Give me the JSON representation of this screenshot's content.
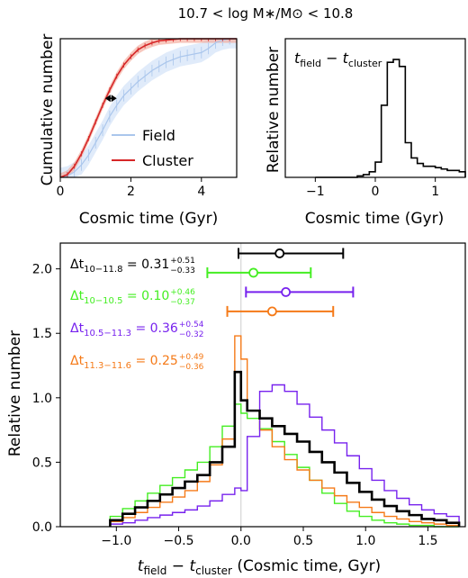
{
  "figure_title": "10.7 < log M∗/M⊙ < 10.8",
  "colors": {
    "field": "#aac6ec",
    "field_band": "#cfe0f8",
    "cluster": "#d62728",
    "cluster_band": "#f2a99a",
    "all": "#000000",
    "low": "#44ee22",
    "mid": "#7722ee",
    "high": "#f57a18",
    "zero_line": "#cccccc"
  },
  "chart_data": [
    {
      "id": "cumulative",
      "type": "line",
      "xlabel": "Cosmic time (Gyr)",
      "ylabel": "Cumulative number",
      "xlim": [
        0,
        5
      ],
      "ylim": [
        0,
        1
      ],
      "xticks": [
        0,
        2,
        4
      ],
      "yticks_shown": false,
      "x": [
        0.2,
        0.4,
        0.6,
        0.8,
        1.0,
        1.2,
        1.4,
        1.6,
        1.8,
        2.0,
        2.2,
        2.4,
        2.6,
        2.8,
        3.0,
        3.2,
        3.4,
        3.6,
        3.8,
        4.0,
        4.2,
        4.4,
        4.6,
        4.8,
        5.0
      ],
      "series": [
        {
          "name": "Field",
          "values": [
            0.01,
            0.04,
            0.09,
            0.16,
            0.25,
            0.34,
            0.44,
            0.52,
            0.59,
            0.64,
            0.69,
            0.73,
            0.77,
            0.8,
            0.83,
            0.85,
            0.87,
            0.88,
            0.89,
            0.9,
            0.93,
            0.97,
            0.99,
            1.0,
            1.0
          ],
          "band": 0.07
        },
        {
          "name": "Cluster",
          "values": [
            0.02,
            0.08,
            0.17,
            0.28,
            0.4,
            0.52,
            0.63,
            0.73,
            0.81,
            0.87,
            0.92,
            0.95,
            0.97,
            0.985,
            0.99,
            0.995,
            1.0,
            1.0,
            1.0,
            1.0,
            1.0,
            1.0,
            1.0,
            1.0,
            1.0
          ],
          "band": 0.03
        }
      ],
      "legend": {
        "position": "lower-right",
        "entries": [
          "Field",
          "Cluster"
        ]
      },
      "arrow_between": {
        "y": 0.57,
        "x_from": 1.27,
        "x_to": 1.6
      }
    },
    {
      "id": "hist-field-minus-cluster",
      "type": "line",
      "title": "t_field − t_cluster",
      "xlabel": "Cosmic time (Gyr)",
      "ylabel": "Relative number",
      "xlim": [
        -1.5,
        1.5
      ],
      "ylim": [
        0,
        1
      ],
      "xticks": [
        -1,
        0,
        1
      ],
      "yticks_shown": false,
      "step": true,
      "bin_edges": [
        -1.0,
        -0.9,
        -0.8,
        -0.7,
        -0.6,
        -0.5,
        -0.4,
        -0.3,
        -0.2,
        -0.1,
        0.0,
        0.1,
        0.2,
        0.3,
        0.4,
        0.5,
        0.6,
        0.7,
        0.8,
        0.9,
        1.0,
        1.1,
        1.2,
        1.3,
        1.4,
        1.5
      ],
      "values": [
        0,
        0,
        0,
        0,
        0,
        0,
        0,
        0.01,
        0.02,
        0.04,
        0.11,
        0.52,
        0.83,
        0.85,
        0.8,
        0.25,
        0.14,
        0.1,
        0.08,
        0.08,
        0.07,
        0.06,
        0.05,
        0.05,
        0.04
      ]
    },
    {
      "id": "hist-bins",
      "type": "line",
      "xlabel": "t_field − t_cluster (Cosmic time, Gyr)",
      "ylabel": "Relative number",
      "xlim": [
        -1.45,
        1.8
      ],
      "ylim": [
        0,
        2.2
      ],
      "xticks": [
        -1.0,
        -0.5,
        0.0,
        0.5,
        1.0,
        1.5
      ],
      "xtick_labels": [
        "−1.0",
        "−0.5",
        "0.0",
        "0.5",
        "1.0",
        "1.5"
      ],
      "yticks": [
        0.0,
        0.5,
        1.0,
        1.5,
        2.0
      ],
      "ytick_labels": [
        "0.0",
        "0.5",
        "1.0",
        "1.5",
        "2.0"
      ],
      "step": true,
      "bin_edges": [
        -1.05,
        -0.95,
        -0.85,
        -0.75,
        -0.65,
        -0.55,
        -0.45,
        -0.35,
        -0.25,
        -0.15,
        -0.05,
        0.0,
        0.05,
        0.15,
        0.25,
        0.35,
        0.45,
        0.55,
        0.65,
        0.75,
        0.85,
        0.95,
        1.05,
        1.15,
        1.25,
        1.35,
        1.45,
        1.55,
        1.65,
        1.75
      ],
      "series": [
        {
          "key": "all",
          "name": "Δt 10−11.8",
          "values": [
            0.05,
            0.1,
            0.15,
            0.2,
            0.25,
            0.3,
            0.35,
            0.4,
            0.5,
            0.62,
            1.2,
            0.98,
            0.9,
            0.84,
            0.78,
            0.72,
            0.66,
            0.58,
            0.5,
            0.42,
            0.34,
            0.27,
            0.21,
            0.16,
            0.12,
            0.09,
            0.06,
            0.05,
            0.03
          ],
          "annotation": {
            "base": "Δt",
            "sub": "10−11.8",
            "value": "= 0.31",
            "sup": "+0.51",
            "low": "−0.33"
          },
          "errorbar": {
            "y": 2.12,
            "center": 0.31,
            "lo": 0.33,
            "hi": 0.51
          }
        },
        {
          "key": "low",
          "name": "Δt 10−10.5",
          "values": [
            0.08,
            0.14,
            0.2,
            0.26,
            0.32,
            0.38,
            0.44,
            0.5,
            0.62,
            0.78,
            0.95,
            0.88,
            0.84,
            0.76,
            0.66,
            0.56,
            0.46,
            0.36,
            0.26,
            0.18,
            0.12,
            0.08,
            0.05,
            0.03,
            0.02,
            0.01,
            0.01,
            0.0,
            0.0
          ],
          "annotation": {
            "base": "Δt",
            "sub": "10−10.5",
            "value": "= 0.10",
            "sup": "+0.46",
            "low": "−0.37"
          },
          "errorbar": {
            "y": 1.97,
            "center": 0.1,
            "lo": 0.37,
            "hi": 0.46
          }
        },
        {
          "key": "mid",
          "name": "Δt 10.5−11.3",
          "values": [
            0.02,
            0.03,
            0.05,
            0.07,
            0.09,
            0.11,
            0.13,
            0.16,
            0.2,
            0.25,
            0.3,
            0.28,
            0.7,
            1.05,
            1.1,
            1.05,
            0.95,
            0.85,
            0.75,
            0.65,
            0.55,
            0.45,
            0.36,
            0.28,
            0.22,
            0.17,
            0.13,
            0.1,
            0.08
          ],
          "annotation": {
            "base": "Δt",
            "sub": "10.5−11.3",
            "value": "= 0.36",
            "sup": "+0.54",
            "low": "−0.32"
          },
          "errorbar": {
            "y": 1.82,
            "center": 0.36,
            "lo": 0.32,
            "hi": 0.54
          }
        },
        {
          "key": "high",
          "name": "Δt 11.3−11.6",
          "values": [
            0.04,
            0.07,
            0.11,
            0.15,
            0.19,
            0.23,
            0.28,
            0.35,
            0.48,
            0.68,
            1.48,
            1.3,
            0.9,
            0.75,
            0.62,
            0.52,
            0.44,
            0.36,
            0.3,
            0.24,
            0.19,
            0.15,
            0.11,
            0.08,
            0.06,
            0.04,
            0.03,
            0.02,
            0.01
          ],
          "annotation": {
            "base": "Δt",
            "sub": "11.3−11.6",
            "value": "= 0.25",
            "sup": "+0.49",
            "low": "−0.36"
          },
          "errorbar": {
            "y": 1.67,
            "center": 0.25,
            "lo": 0.36,
            "hi": 0.49
          }
        }
      ]
    }
  ]
}
